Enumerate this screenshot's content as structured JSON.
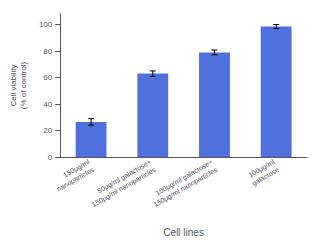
{
  "chart_data": {
    "type": "bar",
    "categories": [
      "150μg/ml\nnanoparticles",
      "50μg/ml galactose+\n150μg/ml nanoparticles",
      "100μg/ml galactose+\n150μg/ml nanoparticles",
      "100μg/ml\ngalactose"
    ],
    "values": [
      26.5,
      63.0,
      79.0,
      98.5
    ],
    "errors": [
      2.5,
      2.0,
      1.8,
      1.5
    ],
    "xlabel": "Cell lines",
    "ylabel": "Cell viability\n(% of control)",
    "ylim": [
      0,
      108
    ],
    "yticks": [
      0,
      20,
      40,
      60,
      80,
      100
    ],
    "grid": false
  }
}
